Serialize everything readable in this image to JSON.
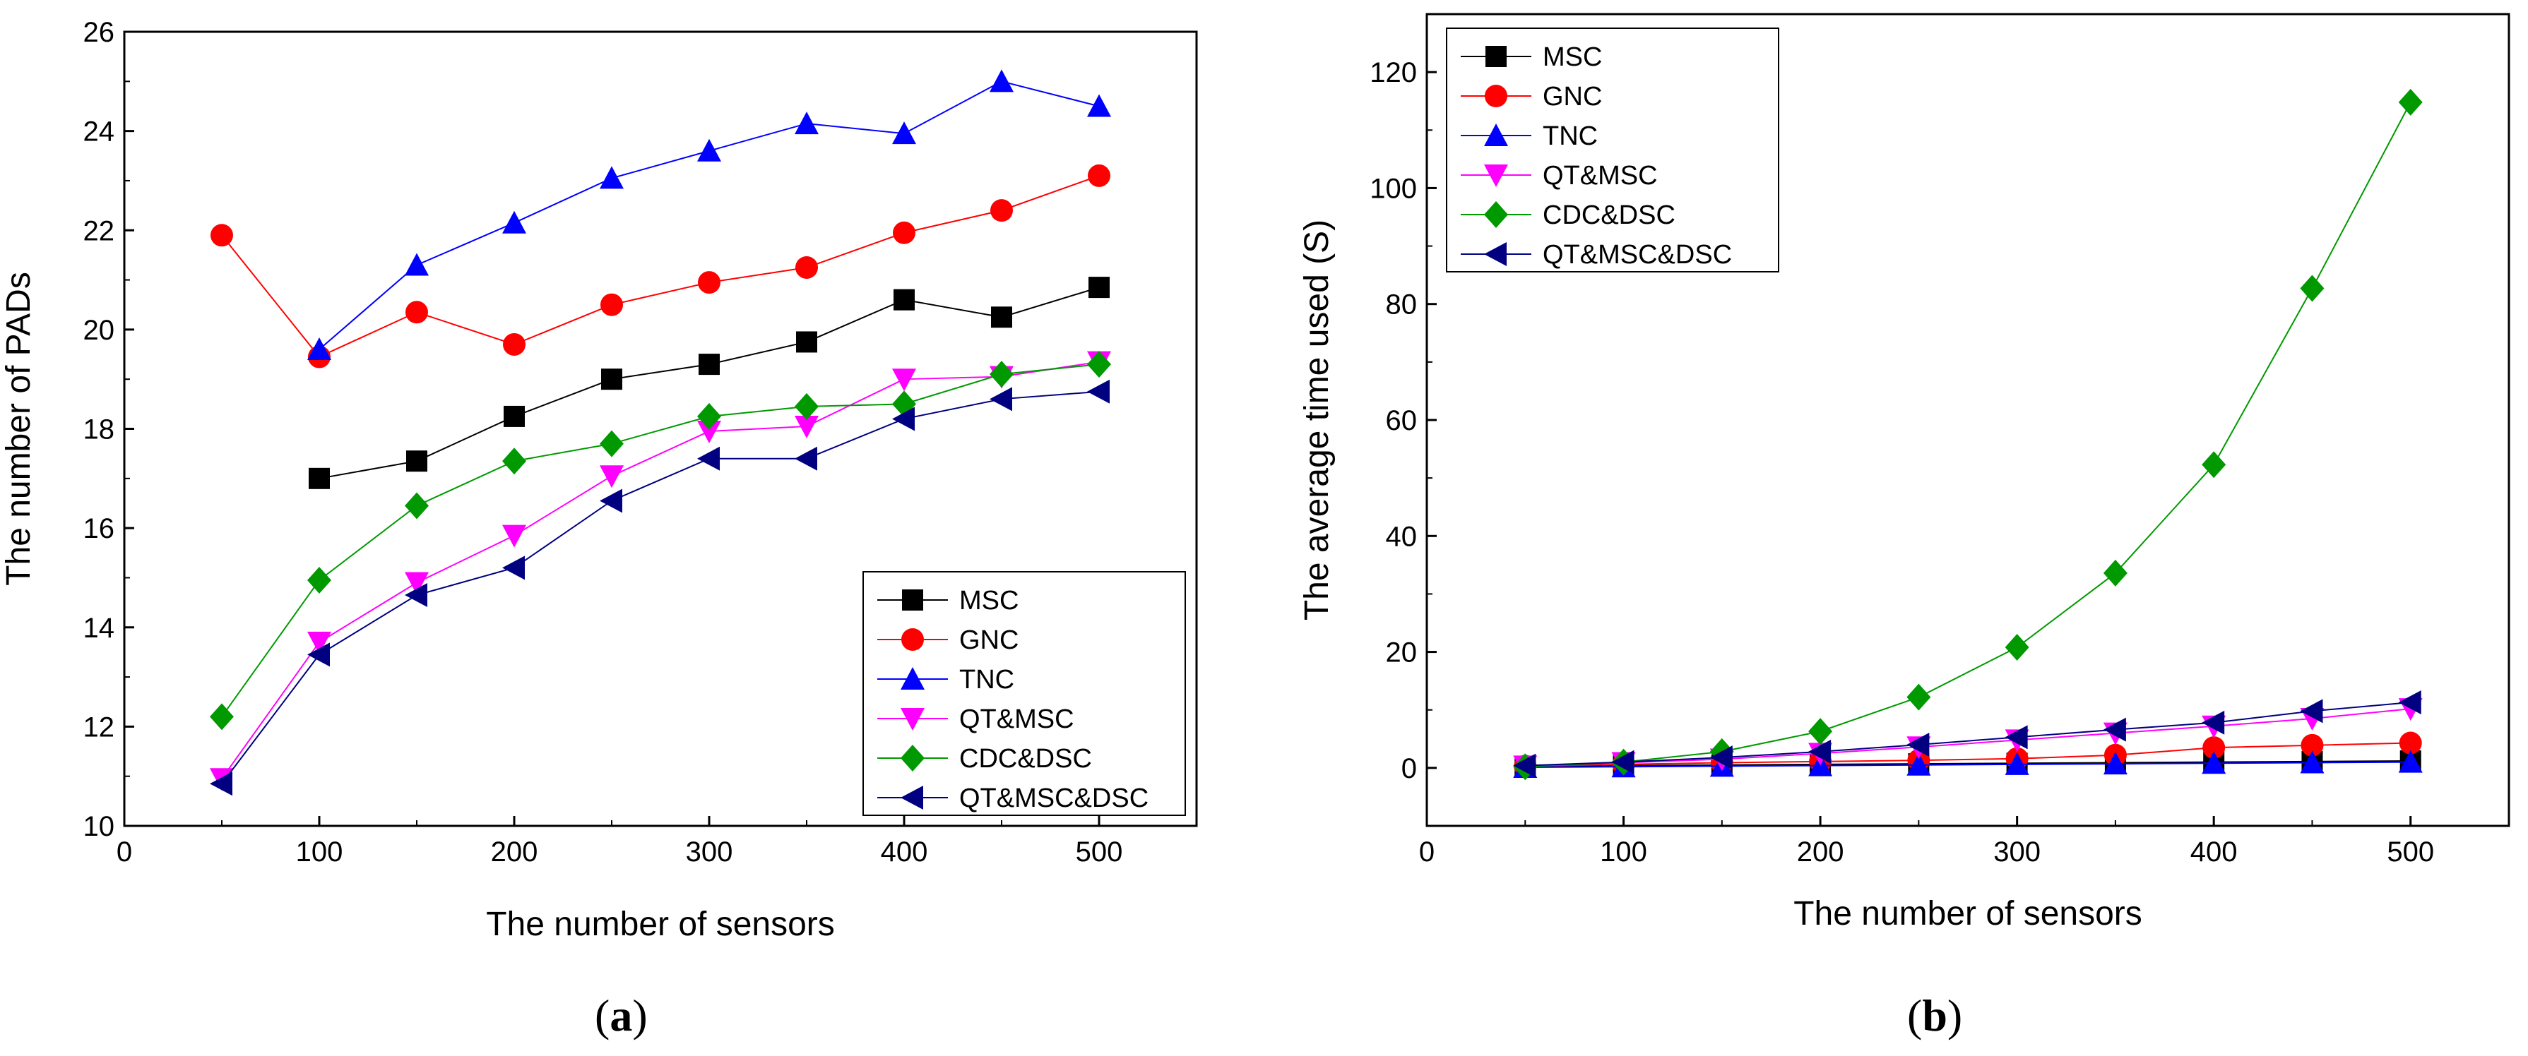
{
  "chart_data": [
    {
      "type": "line",
      "xlabel": "The number of sensors",
      "ylabel": "The number of PADs",
      "xlim": [
        0,
        550
      ],
      "ylim": [
        10,
        26
      ],
      "xticks": [
        0,
        100,
        200,
        300,
        400,
        500
      ],
      "yticks": [
        10,
        12,
        14,
        16,
        18,
        20,
        22,
        24,
        26
      ],
      "legend_position": "bottom-right",
      "caption": {
        "open": "(",
        "letter": "a",
        "close": ")"
      },
      "series": [
        {
          "name": "MSC",
          "color": "#000000",
          "marker": "square",
          "x": [
            100,
            150,
            200,
            250,
            300,
            350,
            400,
            450,
            500
          ],
          "y": [
            17.0,
            17.35,
            18.25,
            19.0,
            19.3,
            19.75,
            20.6,
            20.25,
            20.85
          ]
        },
        {
          "name": "GNC",
          "color": "#ff0000",
          "marker": "circle",
          "x": [
            50,
            100,
            150,
            200,
            250,
            300,
            350,
            400,
            450,
            500
          ],
          "y": [
            21.9,
            19.45,
            20.35,
            19.7,
            20.5,
            20.95,
            21.25,
            21.95,
            22.4,
            23.1
          ]
        },
        {
          "name": "TNC",
          "color": "#0000ff",
          "marker": "triangle-up",
          "x": [
            100,
            150,
            200,
            250,
            300,
            350,
            400,
            450,
            500
          ],
          "y": [
            19.6,
            21.3,
            22.15,
            23.05,
            23.6,
            24.15,
            23.95,
            25.0,
            24.5
          ]
        },
        {
          "name": "QT&MSC",
          "color": "#ff00ff",
          "marker": "triangle-down",
          "x": [
            50,
            100,
            150,
            200,
            250,
            300,
            350,
            400,
            450,
            500
          ],
          "y": [
            10.95,
            13.7,
            14.9,
            15.85,
            17.05,
            17.95,
            18.05,
            19.0,
            19.05,
            19.35
          ]
        },
        {
          "name": "CDC&DSC",
          "color": "#009900",
          "marker": "diamond",
          "x": [
            50,
            100,
            150,
            200,
            250,
            300,
            350,
            400,
            450,
            500
          ],
          "y": [
            12.2,
            14.95,
            16.45,
            17.35,
            17.7,
            18.25,
            18.45,
            18.5,
            19.1,
            19.3
          ]
        },
        {
          "name": "QT&MSC&DSC",
          "color": "#000080",
          "marker": "triangle-left",
          "x": [
            50,
            100,
            150,
            200,
            250,
            300,
            350,
            400,
            450,
            500
          ],
          "y": [
            10.85,
            13.45,
            14.65,
            15.2,
            16.55,
            17.4,
            17.4,
            18.2,
            18.6,
            18.75
          ]
        }
      ]
    },
    {
      "type": "line",
      "xlabel": "The number of sensors",
      "ylabel": "The average time used (S)",
      "xlim": [
        0,
        550
      ],
      "ylim": [
        -10,
        130
      ],
      "xticks": [
        0,
        100,
        200,
        300,
        400,
        500
      ],
      "yticks": [
        0,
        20,
        40,
        60,
        80,
        100,
        120
      ],
      "legend_position": "top-left",
      "caption": {
        "open": "(",
        "letter": "b",
        "close": ")"
      },
      "series": [
        {
          "name": "MSC",
          "color": "#000000",
          "marker": "square",
          "x": [
            50,
            100,
            150,
            200,
            250,
            300,
            350,
            400,
            450,
            500
          ],
          "y": [
            0.2,
            0.4,
            0.5,
            0.6,
            0.7,
            0.8,
            0.9,
            1.0,
            1.1,
            1.2
          ]
        },
        {
          "name": "GNC",
          "color": "#ff0000",
          "marker": "circle",
          "x": [
            50,
            100,
            150,
            200,
            250,
            300,
            350,
            400,
            450,
            500
          ],
          "y": [
            0.3,
            0.6,
            0.9,
            1.1,
            1.3,
            1.6,
            2.2,
            3.5,
            3.9,
            4.3
          ]
        },
        {
          "name": "TNC",
          "color": "#0000ff",
          "marker": "triangle-up",
          "x": [
            50,
            100,
            150,
            200,
            250,
            300,
            350,
            400,
            450,
            500
          ],
          "y": [
            0.1,
            0.2,
            0.3,
            0.4,
            0.5,
            0.6,
            0.7,
            0.8,
            0.9,
            1.0
          ]
        },
        {
          "name": "QT&MSC",
          "color": "#ff00ff",
          "marker": "triangle-down",
          "x": [
            50,
            100,
            150,
            200,
            250,
            300,
            350,
            400,
            450,
            500
          ],
          "y": [
            0.3,
            0.9,
            1.5,
            2.5,
            3.6,
            4.8,
            6.0,
            7.2,
            8.5,
            10.2
          ]
        },
        {
          "name": "CDC&DSC",
          "color": "#009900",
          "marker": "diamond",
          "x": [
            50,
            100,
            150,
            200,
            250,
            300,
            350,
            400,
            450,
            500
          ],
          "y": [
            0.2,
            1.0,
            2.8,
            6.3,
            12.2,
            20.8,
            33.6,
            52.3,
            82.7,
            114.8
          ]
        },
        {
          "name": "QT&MSC&DSC",
          "color": "#000080",
          "marker": "triangle-left",
          "x": [
            50,
            100,
            150,
            200,
            250,
            300,
            350,
            400,
            450,
            500
          ],
          "y": [
            0.4,
            1.0,
            1.8,
            2.8,
            4.0,
            5.3,
            6.6,
            7.8,
            9.8,
            11.3
          ]
        }
      ]
    }
  ]
}
